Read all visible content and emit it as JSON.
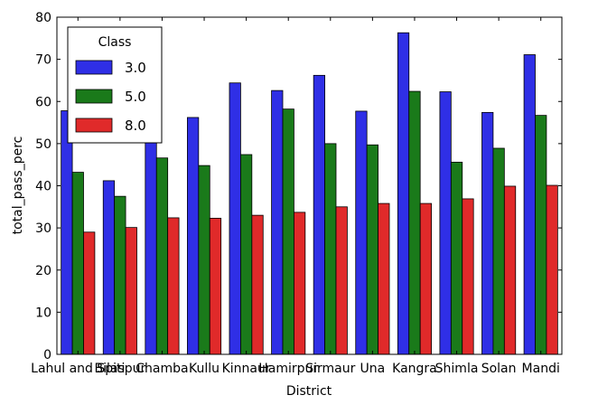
{
  "chart_data": {
    "type": "bar",
    "title": "",
    "xlabel": "District",
    "ylabel": "total_pass_perc",
    "ylim": [
      0,
      80
    ],
    "yticks": [
      0,
      10,
      20,
      30,
      40,
      50,
      60,
      70,
      80
    ],
    "grid": false,
    "categories": [
      "Lahul and Spiti",
      "Bilaspur",
      "Chamba",
      "Kullu",
      "Kinnaur",
      "Hamirpur",
      "Sirmaur",
      "Una",
      "Kangra",
      "Shimla",
      "Solan",
      "Mandi"
    ],
    "legend": {
      "title": "Class",
      "placement": "top-left"
    },
    "series": [
      {
        "name": "3.0",
        "color": "#2f2fe6",
        "values": [
          57.8,
          41.2,
          53.2,
          56.2,
          64.4,
          62.6,
          66.2,
          57.7,
          76.3,
          62.3,
          57.4,
          71.1
        ]
      },
      {
        "name": "5.0",
        "color": "#1a7a1a",
        "values": [
          43.2,
          37.5,
          46.6,
          44.8,
          47.4,
          58.2,
          50.0,
          49.7,
          62.4,
          45.6,
          48.9,
          56.7
        ]
      },
      {
        "name": "8.0",
        "color": "#e02a2a",
        "values": [
          29.0,
          30.1,
          32.4,
          32.3,
          33.0,
          33.7,
          35.0,
          35.8,
          35.8,
          36.9,
          39.9,
          40.1
        ]
      }
    ]
  }
}
